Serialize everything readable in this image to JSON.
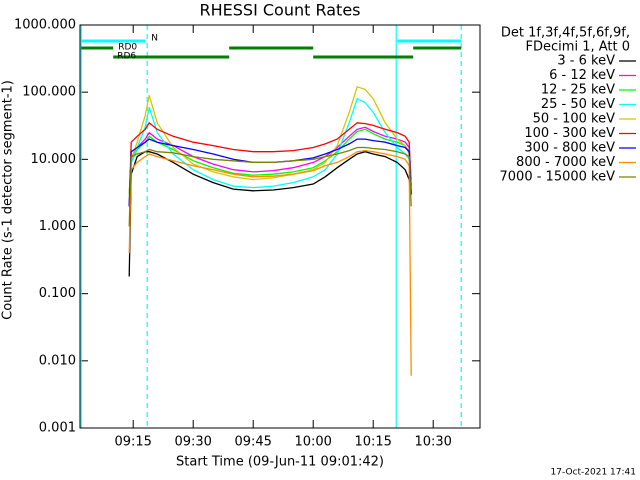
{
  "chart_data": {
    "type": "line",
    "title": "RHESSI Count Rates",
    "xlabel": "Start Time (09-Jun-11 09:01:42)",
    "ylabel": "Count Rate (s-1 detector segment-1)",
    "legend_header": [
      "Det 1f,3f,4f,5f,6f,9f,",
      "FDecimi 1, Att 0"
    ],
    "footer": "17-Oct-2021 17:41",
    "log_y": true,
    "xlim": [
      "09:01:42",
      "10:41:42"
    ],
    "xticks": [
      "09:15",
      "09:30",
      "09:45",
      "10:00",
      "10:15",
      "10:30"
    ],
    "ylim": [
      0.001,
      1000
    ],
    "yticks": [
      {
        "value": 0.001,
        "label": "0.001"
      },
      {
        "value": 0.01,
        "label": "0.010"
      },
      {
        "value": 0.1,
        "label": "0.100"
      },
      {
        "value": 1,
        "label": "1.000"
      },
      {
        "value": 10,
        "label": "10.000"
      },
      {
        "value": 100,
        "label": "100.000"
      },
      {
        "value": 1000,
        "label": "1000.000"
      }
    ],
    "x": [
      "09:14",
      "09:14:30",
      "09:16",
      "09:18",
      "09:19",
      "09:21",
      "09:25",
      "09:30",
      "09:35",
      "09:40",
      "09:45",
      "09:50",
      "09:55",
      "10:00",
      "10:03",
      "10:06",
      "10:09",
      "10:11",
      "10:13",
      "10:15",
      "10:18",
      "10:21",
      "10:23",
      "10:24",
      "10:24:30"
    ],
    "series": [
      {
        "name": "3 - 6 keV",
        "color": "#000000",
        "values": [
          0.18,
          6,
          11,
          13,
          13,
          12,
          9,
          6,
          4.5,
          3.6,
          3.4,
          3.5,
          3.8,
          4.3,
          5.5,
          7.5,
          10,
          12,
          13,
          12,
          11,
          9,
          7,
          5,
          3
        ]
      },
      {
        "name": "6 - 12 keV",
        "color": "#ff00ff",
        "values": [
          3,
          10,
          15,
          20,
          25,
          20,
          16,
          11,
          8.5,
          7,
          6.5,
          6.8,
          7.5,
          9,
          11,
          15,
          22,
          28,
          30,
          26,
          22,
          20,
          18,
          15,
          5
        ]
      },
      {
        "name": "12 - 25 keV",
        "color": "#00ff00",
        "values": [
          3,
          9,
          14,
          18,
          22,
          18,
          14,
          9.5,
          7.5,
          6.2,
          5.8,
          6,
          6.5,
          7.5,
          9.5,
          13,
          20,
          26,
          28,
          24,
          20,
          18,
          16,
          13,
          5
        ]
      },
      {
        "name": "25 - 50 keV",
        "color": "#00ffff",
        "values": [
          3,
          9,
          15,
          30,
          60,
          25,
          12,
          7,
          5,
          4,
          3.8,
          4,
          4.5,
          5.5,
          7,
          12,
          35,
          80,
          70,
          50,
          25,
          15,
          12,
          10,
          4
        ]
      },
      {
        "name": "50 - 100 keV",
        "color": "#d4c800",
        "values": [
          3,
          10,
          18,
          45,
          90,
          35,
          15,
          8.5,
          6.5,
          5.5,
          5,
          5.3,
          6,
          7,
          9,
          16,
          50,
          120,
          110,
          80,
          35,
          20,
          16,
          12,
          4
        ]
      },
      {
        "name": "100 - 300 keV",
        "color": "#ff0000",
        "values": [
          2,
          18,
          22,
          28,
          35,
          28,
          22,
          18,
          16,
          14,
          13,
          13,
          13.5,
          15,
          17,
          20,
          28,
          35,
          34,
          32,
          28,
          25,
          22,
          18,
          3
        ]
      },
      {
        "name": "300 - 800 keV",
        "color": "#0000ff",
        "values": [
          2,
          13,
          15,
          18,
          20,
          18,
          16,
          14,
          12,
          10,
          9,
          9,
          9.5,
          10.5,
          12,
          14,
          17,
          20,
          20,
          19,
          18,
          16,
          15,
          13,
          3
        ]
      },
      {
        "name": "800 - 7000 keV",
        "color": "#ff8c00",
        "values": [
          0.4,
          7,
          9,
          11,
          12,
          11,
          9.5,
          8,
          7,
          6,
          5.5,
          5.6,
          6,
          6.8,
          8,
          9,
          11,
          13,
          13.5,
          13,
          12,
          11,
          10,
          8,
          0.006
        ]
      },
      {
        "name": "7000 - 15000 keV",
        "color": "#808000",
        "values": [
          1,
          11,
          12,
          13,
          14,
          13,
          12.5,
          11,
          10,
          9.5,
          9,
          9,
          9.5,
          10,
          11,
          12,
          13.5,
          15,
          15,
          14.5,
          14,
          13,
          12,
          11,
          2
        ]
      }
    ],
    "flags": [
      {
        "name": "RD0",
        "color": "#008000",
        "row": 1,
        "intervals": [
          [
            "09:02",
            "09:10"
          ],
          [
            "09:39",
            "10:00"
          ],
          [
            "10:25",
            "10:37"
          ]
        ]
      },
      {
        "name": "RD6",
        "color": "#008000",
        "row": 2,
        "intervals": [
          [
            "09:10",
            "09:39"
          ],
          [
            "10:00",
            "10:25"
          ]
        ]
      },
      {
        "name": "N",
        "color": "#00ffff",
        "row": 0,
        "intervals": [
          [
            "09:02",
            "09:18"
          ],
          [
            "10:21",
            "10:37"
          ]
        ]
      }
    ],
    "vlines": [
      {
        "x": "09:02",
        "style": "solid",
        "color": "#00ffff"
      },
      {
        "x": "09:18:30",
        "style": "dashed",
        "color": "#00ffff"
      },
      {
        "x": "10:20:45",
        "style": "solid",
        "color": "#00ffff"
      },
      {
        "x": "10:37",
        "style": "dashed",
        "color": "#00ffff"
      }
    ]
  }
}
